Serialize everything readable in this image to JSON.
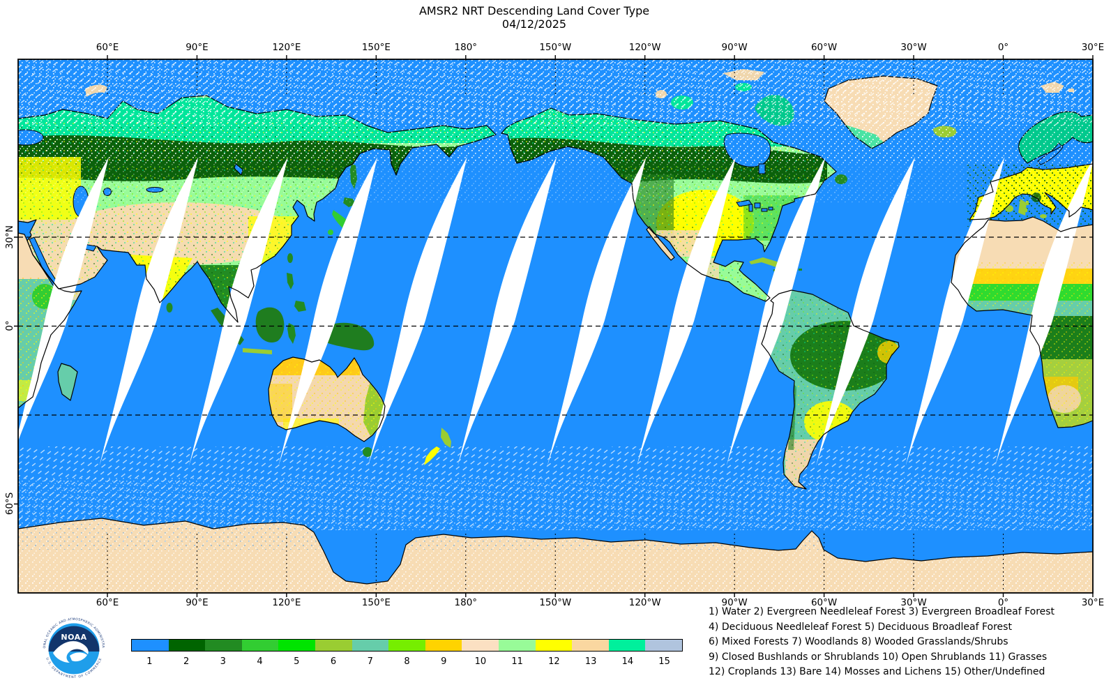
{
  "title": {
    "line1": "AMSR2 NRT Descending Land Cover Type",
    "line2": "04/12/2025"
  },
  "map": {
    "x_tick_labels": [
      "60°E",
      "90°E",
      "120°E",
      "150°E",
      "180°",
      "150°W",
      "120°W",
      "90°W",
      "60°W",
      "30°W",
      "0°",
      "30°E"
    ],
    "y_tick_labels": [
      "30°N",
      "0°",
      "60°S"
    ],
    "ocean_color": "#1E90FF",
    "gridlines": [
      "30°N",
      "0°",
      "30°S"
    ]
  },
  "logo": {
    "name": "NOAA",
    "ring_top": "NATIONAL OCEANIC AND ATMOSPHERIC ADMINISTRATION",
    "ring_bottom": "U.S. DEPARTMENT OF COMMERCE"
  },
  "legend": {
    "categories": [
      {
        "id": "1",
        "label": "Water",
        "color": "#1E90FF"
      },
      {
        "id": "2",
        "label": "Evergreen Needleleaf Forest",
        "color": "#006400"
      },
      {
        "id": "3",
        "label": "Evergreen Broadleaf Forest",
        "color": "#228B22"
      },
      {
        "id": "4",
        "label": "Deciduous Needleleaf Forest",
        "color": "#32CD32"
      },
      {
        "id": "5",
        "label": "Deciduous Broadleaf Forest",
        "color": "#00E400"
      },
      {
        "id": "6",
        "label": "Mixed Forests",
        "color": "#9ACD32"
      },
      {
        "id": "7",
        "label": "Woodlands",
        "color": "#66CDAA"
      },
      {
        "id": "8",
        "label": "Wooded Grasslands/Shrubs",
        "color": "#76EE00"
      },
      {
        "id": "9",
        "label": "Closed Bushlands or Shrublands",
        "color": "#FFD300"
      },
      {
        "id": "10",
        "label": "Open Shrublands",
        "color": "#FBE0C2"
      },
      {
        "id": "11",
        "label": "Grasses",
        "color": "#98FB98"
      },
      {
        "id": "12",
        "label": "Croplands",
        "color": "#FFFF00"
      },
      {
        "id": "13",
        "label": "Bare",
        "color": "#FAD7A0"
      },
      {
        "id": "14",
        "label": "Mosses and Lichens",
        "color": "#00F09C"
      },
      {
        "id": "15",
        "label": "Other/Undefined",
        "color": "#B0C4DE"
      }
    ],
    "lines": [
      "1) Water 2) Evergreen Needleleaf Forest 3) Evergreen Broadleaf Forest",
      "4) Deciduous Needleleaf Forest 5) Deciduous Broadleaf Forest",
      "6) Mixed Forests 7) Woodlands 8) Wooded Grasslands/Shrubs",
      "9) Closed Bushlands or Shrublands 10) Open Shrublands 11) Grasses",
      "12) Croplands 13) Bare 14) Mosses and Lichens 15) Other/Undefined"
    ]
  }
}
